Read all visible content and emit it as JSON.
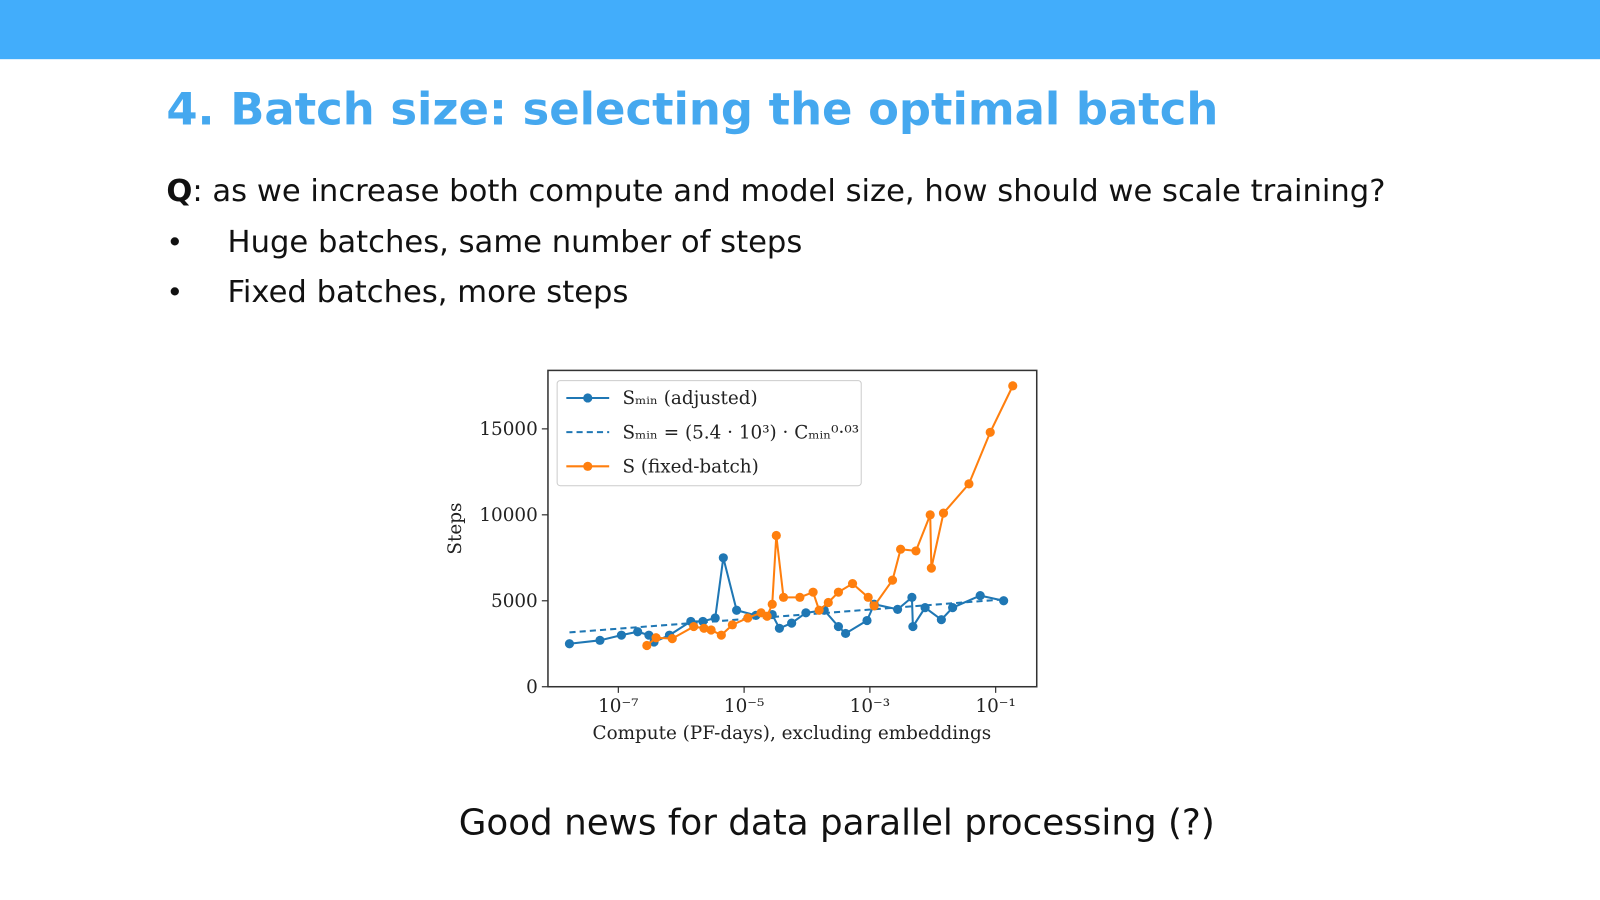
{
  "slide": {
    "title": "4. Batch size: selecting the optimal batch",
    "question": {
      "label": "Q",
      "text": ": as we increase both compute and model size, how should we scale training?"
    },
    "bullets": [
      "Huge batches, same number of steps",
      "Fixed batches, more steps"
    ],
    "footer": "Good news for data parallel processing (?)"
  },
  "chart_data": {
    "type": "line",
    "x_label": "Compute (PF-days), excluding embeddings",
    "y_label": "Steps",
    "xscale": "log",
    "xlim": [
      7.6e-09,
      0.45
    ],
    "xticks": [
      {
        "value": 1e-07,
        "label": "10⁻⁷"
      },
      {
        "value": 1e-05,
        "label": "10⁻⁵"
      },
      {
        "value": 0.001,
        "label": "10⁻³"
      },
      {
        "value": 0.1,
        "label": "10⁻¹"
      }
    ],
    "ylim": [
      0,
      18400
    ],
    "yticks": [
      0,
      5000,
      10000,
      15000
    ],
    "legend": "upper left",
    "series": [
      {
        "name": "Sₘᵢₙ (adjusted)",
        "color": "#1f77b4",
        "style": "solid",
        "markers": true,
        "x": [
          1.67e-08,
          5.1e-08,
          1.12e-07,
          2.03e-07,
          3.06e-07,
          3.69e-07,
          6.5e-07,
          1.42e-06,
          2.21e-06,
          3.47e-06,
          4.67e-06,
          7.6e-06,
          1.54e-05,
          2.8e-05,
          3.64e-05,
          5.7e-05,
          9.6e-05,
          0.000188,
          0.000316,
          0.000411,
          0.0009,
          0.00117,
          0.00276,
          0.00466,
          0.00483,
          0.00755,
          0.0137,
          0.0207,
          0.0568,
          0.134
        ],
        "values": [
          2500,
          2700,
          3000,
          3200,
          3000,
          2600,
          3000,
          3800,
          3800,
          4000,
          7500,
          4450,
          4150,
          4200,
          3400,
          3700,
          4300,
          4450,
          3500,
          3100,
          3850,
          4800,
          4500,
          5200,
          3500,
          4600,
          3900,
          4600,
          5300,
          5000
        ]
      },
      {
        "name": "Sₘᵢₙ = (5.4 · 10³) · Cₘᵢₙ⁰·⁰³",
        "color": "#1f77b4",
        "style": "dashed",
        "markers": false,
        "x": [
          1.67e-08,
          0.134
        ],
        "values": [
          3160,
          5080
        ]
      },
      {
        "name": "S (fixed-batch)",
        "color": "#ff7f0e",
        "style": "solid",
        "markers": true,
        "x": [
          2.84e-07,
          3.98e-07,
          7.2e-07,
          1.58e-06,
          2.3e-06,
          2.99e-06,
          4.34e-06,
          6.5e-06,
          1.14e-05,
          1.86e-05,
          2.32e-05,
          2.8e-05,
          3.25e-05,
          4.23e-05,
          7.7e-05,
          0.000125,
          0.000156,
          0.000218,
          0.000316,
          0.00053,
          0.00094,
          0.00117,
          0.00229,
          0.00308,
          0.0054,
          0.0091,
          0.0095,
          0.0148,
          0.0376,
          0.082,
          0.187
        ],
        "values": [
          2400,
          2850,
          2800,
          3500,
          3400,
          3300,
          3000,
          3600,
          4000,
          4300,
          4100,
          4800,
          8800,
          5200,
          5200,
          5500,
          4450,
          4900,
          5500,
          6000,
          5200,
          4700,
          6200,
          8000,
          7900,
          10000,
          6900,
          10100,
          11800,
          14800,
          17500
        ]
      }
    ]
  }
}
